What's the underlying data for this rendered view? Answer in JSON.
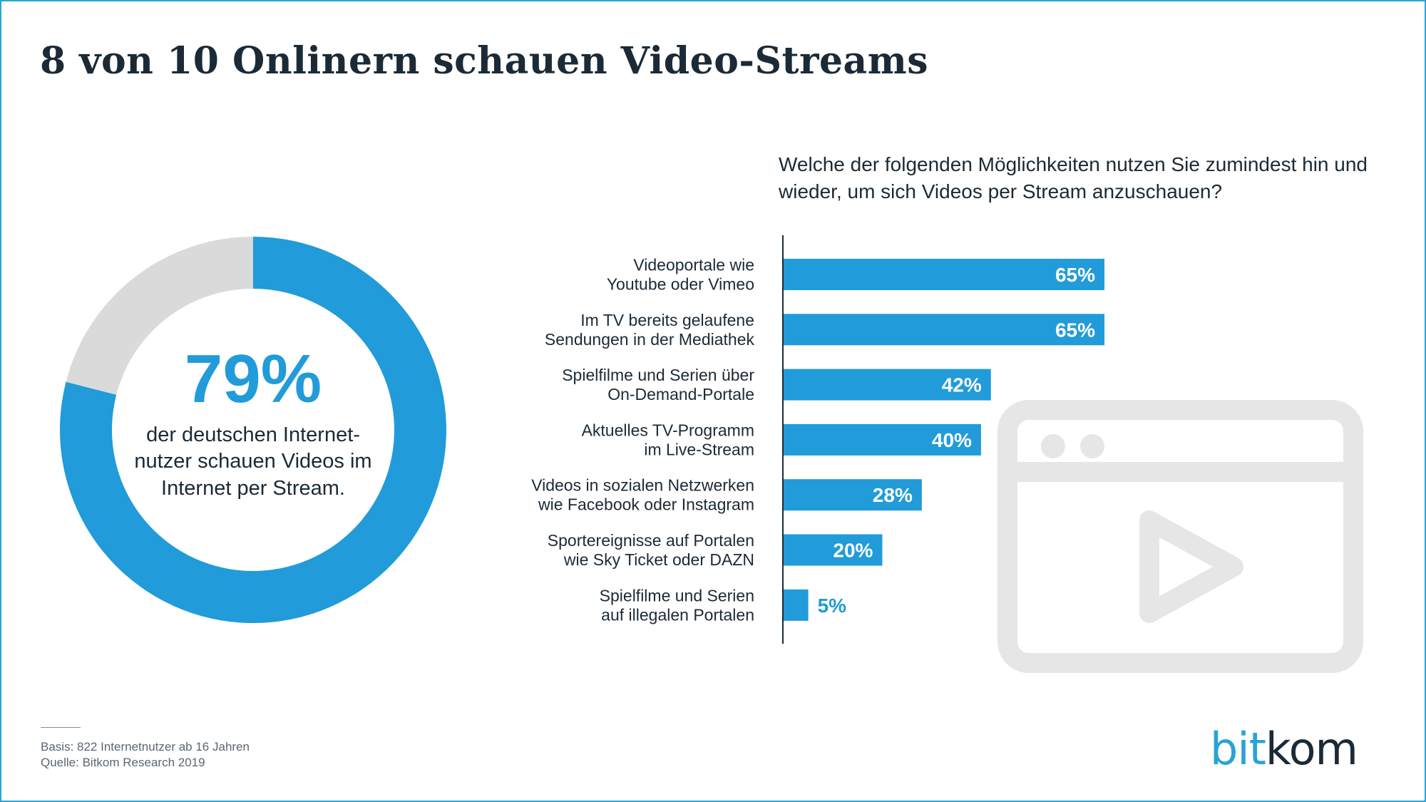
{
  "title": "8 von 10 Onlinern schauen Video-Streams",
  "donut": {
    "value_label": "79%",
    "value": 79,
    "caption": "der deutschen Internet-nutzer schauen Videos im Internet per Stream.",
    "colors": {
      "fill": "#219bd9",
      "rest": "#dadada"
    }
  },
  "question": "Welche der folgenden Möglichkeiten nutzen Sie zumindest hin und wieder, um sich Videos per Stream anzuschauen?",
  "chart_data": [
    {
      "type": "pie",
      "variant": "donut",
      "values": [
        79,
        21
      ],
      "value_labels": [
        "79%"
      ],
      "colors": [
        "#219bd9",
        "#dadada"
      ]
    },
    {
      "type": "bar",
      "orientation": "horizontal",
      "categories": [
        [
          "Videoportale wie",
          "Youtube oder Vimeo"
        ],
        [
          "Im TV bereits gelaufene",
          "Sendungen in der Mediathek"
        ],
        [
          "Spielfilme und Serien über",
          "On-Demand-Portale"
        ],
        [
          "Aktuelles TV-Programm",
          "im Live-Stream"
        ],
        [
          "Videos in sozialen Netzwerken",
          "wie Facebook oder Instagram"
        ],
        [
          "Sportereignisse auf Portalen",
          "wie Sky Ticket oder DAZN"
        ],
        [
          "Spielfilme und Serien",
          "auf illegalen Portalen"
        ]
      ],
      "values": [
        65,
        65,
        42,
        40,
        28,
        20,
        5
      ],
      "value_labels": [
        "65%",
        "65%",
        "42%",
        "40%",
        "28%",
        "20%",
        "5%"
      ],
      "xlim": [
        0,
        100
      ],
      "bar_color": "#219bd9"
    }
  ],
  "icon": "video-player-icon",
  "footnote": {
    "basis": "Basis: 822 Internetnutzer ab 16 Jahren",
    "source": "Quelle: Bitkom Research 2019"
  },
  "logo": {
    "part1": "bit",
    "part2": "kom"
  },
  "colors": {
    "accent": "#219bd9",
    "text": "#1b2a36",
    "frame": "#2aa3d6",
    "icon": "#e6e6e6"
  }
}
